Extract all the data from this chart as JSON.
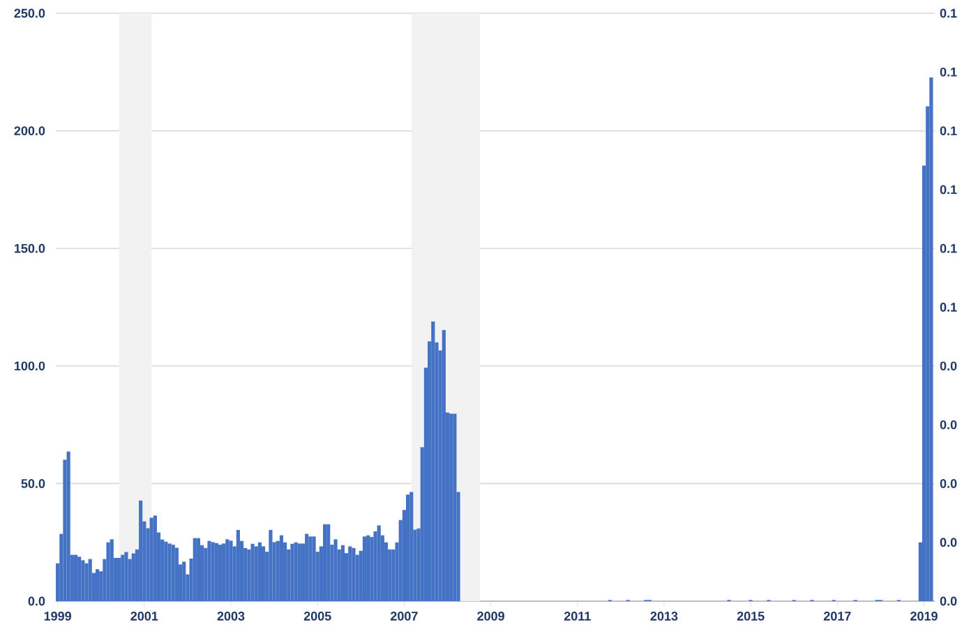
{
  "chart_data": {
    "type": "bar",
    "color": "#4472c4",
    "x": [
      "1999-01",
      "1999-02",
      "1999-03",
      "1999-04",
      "1999-05",
      "1999-06",
      "1999-07",
      "1999-08",
      "1999-09",
      "1999-10",
      "1999-11",
      "1999-12",
      "2000-01",
      "2000-02",
      "2000-03",
      "2000-04",
      "2000-05",
      "2000-06",
      "2000-07",
      "2000-08",
      "2000-09",
      "2000-10",
      "2000-11",
      "2000-12",
      "2001-01",
      "2001-02",
      "2001-03",
      "2001-04",
      "2001-05",
      "2001-06",
      "2001-07",
      "2001-08",
      "2001-09",
      "2001-10",
      "2001-11",
      "2001-12",
      "2002-01",
      "2002-02",
      "2002-03",
      "2002-04",
      "2002-05",
      "2002-06",
      "2002-07",
      "2002-08",
      "2002-09",
      "2002-10",
      "2002-11",
      "2002-12",
      "2003-01",
      "2003-02",
      "2003-03",
      "2003-04",
      "2003-05",
      "2003-06",
      "2003-07",
      "2003-08",
      "2003-09",
      "2003-10",
      "2003-11",
      "2003-12",
      "2004-01",
      "2004-02",
      "2004-03",
      "2004-04",
      "2004-05",
      "2004-06",
      "2004-07",
      "2004-08",
      "2004-09",
      "2004-10",
      "2004-11",
      "2004-12",
      "2005-01",
      "2005-02",
      "2005-03",
      "2005-04",
      "2005-05",
      "2005-06",
      "2005-07",
      "2005-08",
      "2005-09",
      "2005-10",
      "2005-11",
      "2005-12",
      "2006-01",
      "2006-02",
      "2006-03",
      "2006-04",
      "2006-05",
      "2006-06",
      "2006-07",
      "2006-08",
      "2006-09",
      "2006-10",
      "2006-11",
      "2006-12",
      "2007-01",
      "2007-02",
      "2007-03",
      "2007-04",
      "2007-05",
      "2007-06",
      "2007-07",
      "2007-08",
      "2007-09",
      "2007-10",
      "2007-11",
      "2007-12",
      "2008-01",
      "2008-02",
      "2008-03",
      "2008-04",
      "2008-05",
      "2008-06",
      "2008-07",
      "2008-08",
      "2008-09",
      "2008-10",
      "2008-11",
      "2008-12",
      "2009-01",
      "2009-02",
      "2009-03",
      "2009-04",
      "2009-05",
      "2009-06",
      "2009-07",
      "2009-08",
      "2009-09",
      "2009-10",
      "2009-11",
      "2009-12",
      "2010-01",
      "2010-02",
      "2010-03",
      "2010-04",
      "2010-05",
      "2010-06",
      "2010-07",
      "2010-08",
      "2010-09",
      "2010-10",
      "2010-11",
      "2010-12",
      "2011-01",
      "2011-02",
      "2011-03",
      "2011-04",
      "2011-05",
      "2011-06",
      "2011-07",
      "2011-08",
      "2011-09",
      "2011-10",
      "2011-11",
      "2011-12",
      "2012-01",
      "2012-02",
      "2012-03",
      "2012-04",
      "2012-05",
      "2012-06",
      "2012-07",
      "2012-08",
      "2012-09",
      "2012-10",
      "2012-11",
      "2012-12",
      "2013-01",
      "2013-02",
      "2013-03",
      "2013-04",
      "2013-05",
      "2013-06",
      "2013-07",
      "2013-08",
      "2013-09",
      "2013-10",
      "2013-11",
      "2013-12",
      "2014-01",
      "2014-02",
      "2014-03",
      "2014-04",
      "2014-05",
      "2014-06",
      "2014-07",
      "2014-08",
      "2014-09",
      "2014-10",
      "2014-11",
      "2014-12",
      "2015-01",
      "2015-02",
      "2015-03",
      "2015-04",
      "2015-05",
      "2015-06",
      "2015-07",
      "2015-08",
      "2015-09",
      "2015-10",
      "2015-11",
      "2015-12",
      "2016-01",
      "2016-02",
      "2016-03",
      "2016-04",
      "2016-05",
      "2016-06",
      "2016-07",
      "2016-08",
      "2016-09",
      "2016-10",
      "2016-11",
      "2016-12",
      "2017-01",
      "2017-02",
      "2017-03",
      "2017-04",
      "2017-05",
      "2017-06",
      "2017-07",
      "2017-08",
      "2017-09",
      "2017-10",
      "2017-11",
      "2017-12",
      "2018-01",
      "2018-02",
      "2018-03",
      "2018-04",
      "2018-05",
      "2018-06",
      "2018-07",
      "2018-08",
      "2018-09",
      "2018-10",
      "2018-11",
      "2018-12",
      "2019-01",
      "2019-02",
      "2019-03"
    ],
    "values": [
      16.1,
      28.6,
      60.1,
      63.6,
      19.7,
      19.7,
      18.9,
      17.4,
      16.1,
      17.9,
      12.0,
      13.6,
      12.7,
      17.9,
      25.0,
      26.3,
      18.4,
      18.4,
      19.7,
      20.9,
      17.9,
      20.3,
      22.0,
      42.8,
      33.9,
      31.0,
      35.5,
      36.4,
      29.2,
      26.2,
      25.3,
      24.5,
      24.0,
      22.7,
      15.6,
      16.8,
      11.4,
      18.1,
      26.8,
      26.8,
      23.8,
      22.6,
      25.6,
      25.1,
      24.7,
      24.0,
      24.5,
      26.3,
      25.7,
      23.3,
      30.3,
      25.6,
      22.6,
      22.0,
      24.4,
      23.3,
      25.0,
      23.3,
      21.0,
      30.3,
      25.1,
      25.6,
      28.0,
      25.0,
      22.0,
      24.4,
      25.0,
      24.5,
      24.5,
      28.6,
      27.5,
      27.5,
      21.0,
      23.3,
      32.7,
      32.7,
      24.0,
      26.3,
      22.0,
      23.8,
      20.4,
      23.3,
      22.6,
      19.7,
      21.4,
      27.5,
      28.0,
      27.3,
      29.7,
      32.2,
      28.0,
      25.0,
      22.0,
      22.0,
      25.0,
      34.5,
      38.8,
      45.3,
      46.4,
      30.4,
      30.9,
      65.5,
      99.3,
      110.5,
      118.9,
      110.0,
      106.6,
      115.3,
      80.2,
      79.7,
      79.7,
      46.4,
      0,
      0,
      0,
      0,
      0,
      0,
      0,
      0,
      0,
      0,
      0,
      0,
      0,
      0,
      0,
      0,
      0,
      0,
      0,
      0,
      0,
      0,
      0,
      0,
      0,
      0,
      0,
      0,
      0,
      0,
      0,
      0,
      0,
      0,
      0,
      0,
      0,
      0,
      0,
      0,
      0,
      0.5,
      0,
      0,
      0,
      0,
      0.5,
      0,
      0,
      0,
      0,
      0.5,
      0.5,
      0,
      0,
      0,
      0,
      0,
      0,
      0,
      0,
      0,
      0,
      0,
      0,
      0,
      0,
      0,
      0,
      0,
      0,
      0,
      0,
      0,
      0.5,
      0,
      0,
      0,
      0,
      0,
      0.5,
      0,
      0,
      0,
      0,
      0.5,
      0,
      0,
      0,
      0,
      0,
      0,
      0.5,
      0,
      0,
      0,
      0,
      0.5,
      0,
      0,
      0,
      0,
      0,
      0.5,
      0,
      0,
      0,
      0,
      0,
      0.5,
      0,
      0,
      0,
      0,
      0,
      0.5,
      0.5,
      0,
      0,
      0,
      0,
      0.5,
      0,
      0,
      0,
      0,
      0,
      25.0,
      185.2,
      210.4,
      222.7
    ],
    "xlim": [
      "1998-12-16",
      "2019-03-31"
    ],
    "xticks": [
      "1999",
      "2001",
      "2003",
      "2005",
      "2007",
      "2009",
      "2011",
      "2013",
      "2015",
      "2017",
      "2019"
    ],
    "ylim": [
      0,
      250
    ],
    "yticks": [
      {
        "value": 0,
        "label": "0.0"
      },
      {
        "value": 50,
        "label": "50.0"
      },
      {
        "value": 100,
        "label": "100.0"
      },
      {
        "value": 150,
        "label": "150.0"
      },
      {
        "value": 200,
        "label": "200.0"
      },
      {
        "value": 250,
        "label": "250.0"
      }
    ],
    "y2lim": [
      0,
      0.12
    ],
    "y2ticks": [
      {
        "value": 0,
        "label": "0.0"
      },
      {
        "value": 0.012,
        "label": "0.0"
      },
      {
        "value": 0.024,
        "label": "0.0"
      },
      {
        "value": 0.036,
        "label": "0.0"
      },
      {
        "value": 0.048,
        "label": "0.0"
      },
      {
        "value": 0.06,
        "label": "0.1"
      },
      {
        "value": 0.072,
        "label": "0.1"
      },
      {
        "value": 0.084,
        "label": "0.1"
      },
      {
        "value": 0.096,
        "label": "0.1"
      },
      {
        "value": 0.108,
        "label": "0.1"
      },
      {
        "value": 0.12,
        "label": "0.1"
      }
    ],
    "grid": "y",
    "bands": [
      {
        "axis": "x",
        "from": "2000-06",
        "to": "2001-03",
        "color": "#f2f2f2"
      },
      {
        "axis": "x",
        "from": "2007-03",
        "to": "2008-10",
        "color": "#f2f2f2"
      }
    ]
  }
}
